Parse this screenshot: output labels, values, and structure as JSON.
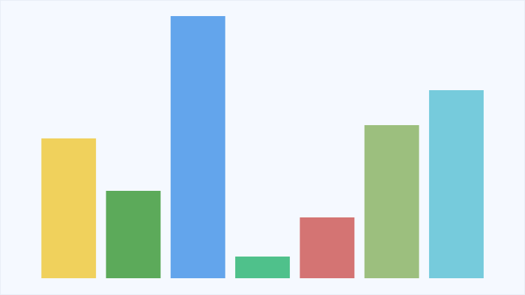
{
  "chart_data": {
    "type": "bar",
    "categories": [
      null,
      null,
      null,
      null,
      null,
      null,
      null
    ],
    "values": [
      200,
      125,
      375,
      31,
      87,
      219,
      269
    ],
    "colors": [
      "#f0d15c",
      "#5caa5a",
      "#63a5ec",
      "#4fc18b",
      "#d47473",
      "#9cbf7e",
      "#76cbdc"
    ],
    "ylim": [
      0,
      400
    ]
  }
}
